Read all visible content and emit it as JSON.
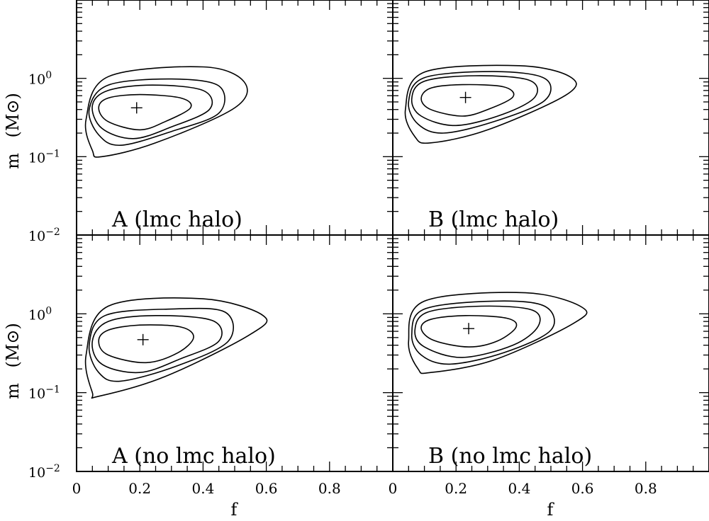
{
  "chart_data": {
    "type": "contour",
    "xlabel": "f",
    "ylabel": "m",
    "ylabel_unit": "(M⊙)",
    "xlim": [
      0,
      1
    ],
    "ylim": [
      0.01,
      10
    ],
    "yscale": "log",
    "x_ticks": [
      "0",
      "0.2",
      "0.4",
      "0.6",
      "0.8"
    ],
    "y_ticks": [
      {
        "base": "10",
        "exp": "−2",
        "value": 0.01
      },
      {
        "base": "10",
        "exp": "−1",
        "value": 0.1
      },
      {
        "base": "10",
        "exp": "0",
        "value": 1
      }
    ],
    "panels": [
      {
        "label": "A (lmc halo)",
        "best_fit": {
          "f": 0.19,
          "m": 0.42
        },
        "contours": [
          [
            [
              0.07,
              0.42
            ],
            [
              0.1,
              0.28
            ],
            [
              0.2,
              0.22
            ],
            [
              0.28,
              0.28
            ],
            [
              0.36,
              0.42
            ],
            [
              0.33,
              0.56
            ],
            [
              0.2,
              0.62
            ],
            [
              0.1,
              0.56
            ]
          ],
          [
            [
              0.05,
              0.45
            ],
            [
              0.08,
              0.23
            ],
            [
              0.18,
              0.17
            ],
            [
              0.3,
              0.24
            ],
            [
              0.42,
              0.4
            ],
            [
              0.4,
              0.7
            ],
            [
              0.24,
              0.82
            ],
            [
              0.1,
              0.7
            ]
          ],
          [
            [
              0.04,
              0.4
            ],
            [
              0.07,
              0.19
            ],
            [
              0.14,
              0.14
            ],
            [
              0.3,
              0.21
            ],
            [
              0.45,
              0.36
            ],
            [
              0.45,
              0.8
            ],
            [
              0.3,
              0.98
            ],
            [
              0.1,
              0.82
            ]
          ],
          [
            [
              0.03,
              0.3
            ],
            [
              0.05,
              0.12
            ],
            [
              0.08,
              0.1
            ],
            [
              0.25,
              0.15
            ],
            [
              0.5,
              0.42
            ],
            [
              0.53,
              0.9
            ],
            [
              0.4,
              1.4
            ],
            [
              0.1,
              1.05
            ]
          ]
        ]
      },
      {
        "label": "B (lmc halo)",
        "best_fit": {
          "f": 0.23,
          "m": 0.57
        },
        "contours": [
          [
            [
              0.09,
              0.55
            ],
            [
              0.12,
              0.4
            ],
            [
              0.22,
              0.33
            ],
            [
              0.3,
              0.4
            ],
            [
              0.38,
              0.58
            ],
            [
              0.35,
              0.78
            ],
            [
              0.22,
              0.83
            ],
            [
              0.12,
              0.75
            ]
          ],
          [
            [
              0.06,
              0.55
            ],
            [
              0.09,
              0.33
            ],
            [
              0.2,
              0.25
            ],
            [
              0.35,
              0.35
            ],
            [
              0.45,
              0.58
            ],
            [
              0.43,
              0.95
            ],
            [
              0.26,
              1.08
            ],
            [
              0.1,
              0.92
            ]
          ],
          [
            [
              0.05,
              0.5
            ],
            [
              0.08,
              0.26
            ],
            [
              0.16,
              0.2
            ],
            [
              0.32,
              0.28
            ],
            [
              0.48,
              0.52
            ],
            [
              0.48,
              1.0
            ],
            [
              0.32,
              1.22
            ],
            [
              0.1,
              1.02
            ]
          ],
          [
            [
              0.04,
              0.4
            ],
            [
              0.07,
              0.18
            ],
            [
              0.12,
              0.15
            ],
            [
              0.3,
              0.22
            ],
            [
              0.55,
              0.62
            ],
            [
              0.56,
              1.05
            ],
            [
              0.4,
              1.45
            ],
            [
              0.1,
              1.2
            ]
          ]
        ]
      },
      {
        "label": "A (no lmc halo)",
        "best_fit": {
          "f": 0.21,
          "m": 0.47
        },
        "contours": [
          [
            [
              0.07,
              0.45
            ],
            [
              0.1,
              0.3
            ],
            [
              0.22,
              0.24
            ],
            [
              0.32,
              0.32
            ],
            [
              0.37,
              0.5
            ],
            [
              0.33,
              0.68
            ],
            [
              0.2,
              0.72
            ],
            [
              0.1,
              0.62
            ]
          ],
          [
            [
              0.05,
              0.45
            ],
            [
              0.08,
              0.23
            ],
            [
              0.2,
              0.18
            ],
            [
              0.33,
              0.27
            ],
            [
              0.45,
              0.45
            ],
            [
              0.43,
              0.82
            ],
            [
              0.25,
              0.95
            ],
            [
              0.1,
              0.8
            ]
          ],
          [
            [
              0.04,
              0.4
            ],
            [
              0.07,
              0.18
            ],
            [
              0.14,
              0.14
            ],
            [
              0.32,
              0.22
            ],
            [
              0.48,
              0.45
            ],
            [
              0.47,
              1.05
            ],
            [
              0.3,
              1.15
            ],
            [
              0.09,
              0.95
            ]
          ],
          [
            [
              0.03,
              0.3
            ],
            [
              0.05,
              0.1
            ],
            [
              0.07,
              0.09
            ],
            [
              0.28,
              0.16
            ],
            [
              0.55,
              0.55
            ],
            [
              0.59,
              0.95
            ],
            [
              0.4,
              1.55
            ],
            [
              0.1,
              1.25
            ]
          ]
        ]
      },
      {
        "label": "B (no lmc halo)",
        "best_fit": {
          "f": 0.24,
          "m": 0.65
        },
        "contours": [
          [
            [
              0.09,
              0.65
            ],
            [
              0.13,
              0.46
            ],
            [
              0.24,
              0.38
            ],
            [
              0.33,
              0.45
            ],
            [
              0.39,
              0.68
            ],
            [
              0.36,
              0.88
            ],
            [
              0.23,
              0.95
            ],
            [
              0.12,
              0.85
            ]
          ],
          [
            [
              0.07,
              0.62
            ],
            [
              0.1,
              0.38
            ],
            [
              0.22,
              0.28
            ],
            [
              0.38,
              0.4
            ],
            [
              0.46,
              0.7
            ],
            [
              0.44,
              1.12
            ],
            [
              0.28,
              1.25
            ],
            [
              0.11,
              1.05
            ]
          ],
          [
            [
              0.06,
              0.55
            ],
            [
              0.09,
              0.3
            ],
            [
              0.18,
              0.23
            ],
            [
              0.35,
              0.32
            ],
            [
              0.5,
              0.62
            ],
            [
              0.48,
              1.25
            ],
            [
              0.32,
              1.45
            ],
            [
              0.1,
              1.15
            ]
          ],
          [
            [
              0.05,
              0.45
            ],
            [
              0.08,
              0.2
            ],
            [
              0.12,
              0.18
            ],
            [
              0.32,
              0.26
            ],
            [
              0.57,
              0.75
            ],
            [
              0.6,
              1.2
            ],
            [
              0.42,
              1.85
            ],
            [
              0.1,
              1.45
            ]
          ]
        ]
      }
    ]
  }
}
